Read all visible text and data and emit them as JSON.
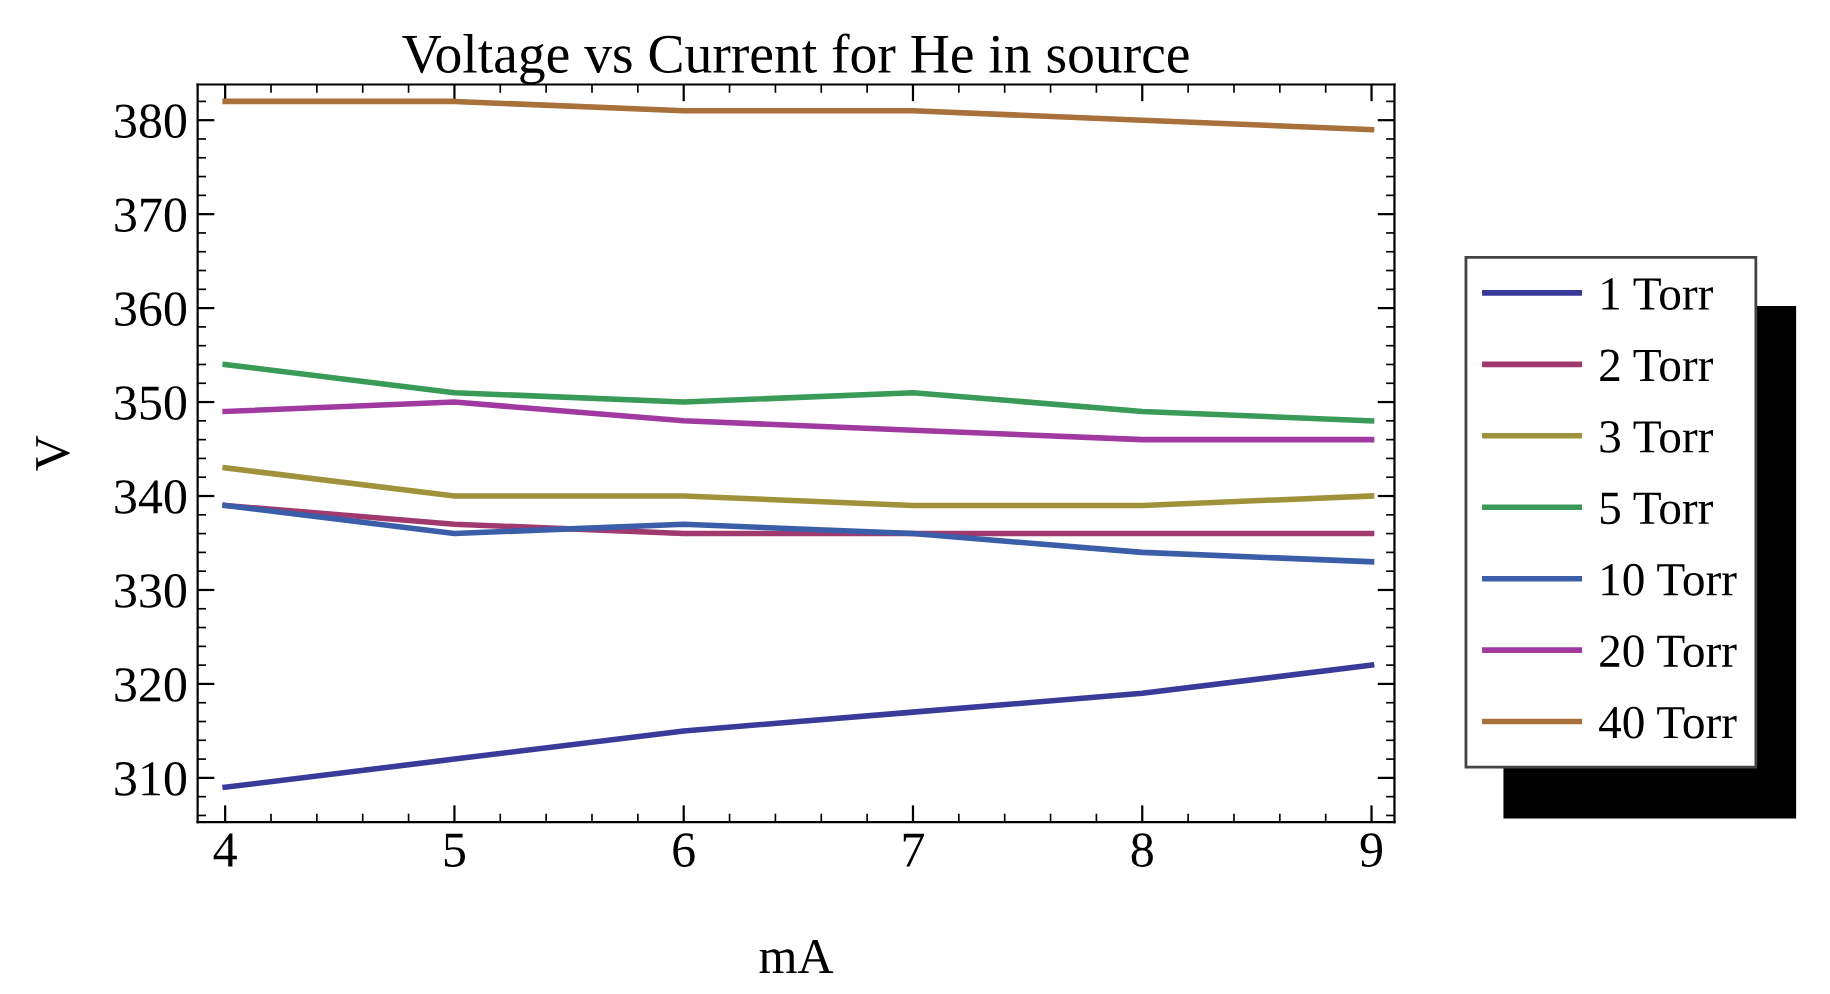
{
  "chart_data": {
    "type": "line",
    "title": "Voltage vs Current for He in source",
    "xlabel": "mA",
    "ylabel": "V",
    "x": [
      4,
      5,
      6,
      7,
      8,
      9
    ],
    "series": [
      {
        "name": "1 Torr",
        "color": "#3a3a9a",
        "values": [
          309,
          312,
          315,
          317,
          319,
          322
        ]
      },
      {
        "name": "2 Torr",
        "color": "#a03a6e",
        "values": [
          339,
          337,
          336,
          336,
          336,
          336
        ]
      },
      {
        "name": "3 Torr",
        "color": "#a0923a",
        "values": [
          343,
          340,
          340,
          339,
          339,
          340
        ]
      },
      {
        "name": "5 Torr",
        "color": "#3a9a58",
        "values": [
          354,
          351,
          350,
          351,
          349,
          348
        ]
      },
      {
        "name": "10 Torr",
        "color": "#3a5ea8",
        "values": [
          339,
          336,
          337,
          336,
          334,
          333
        ]
      },
      {
        "name": "20 Torr",
        "color": "#a03aa0",
        "values": [
          349,
          350,
          348,
          347,
          346,
          346
        ]
      },
      {
        "name": "40 Torr",
        "color": "#a8703a",
        "values": [
          382,
          382,
          381,
          381,
          380,
          379
        ]
      }
    ],
    "xlim": [
      3.88,
      9.1
    ],
    "ylim": [
      305.3,
      383.8
    ],
    "xticks": [
      4,
      5,
      6,
      7,
      8,
      9
    ],
    "yticks": [
      310,
      320,
      330,
      340,
      350,
      360,
      370,
      380
    ],
    "grid": false,
    "legend": "right",
    "marker": "none",
    "line_style": "solid"
  }
}
